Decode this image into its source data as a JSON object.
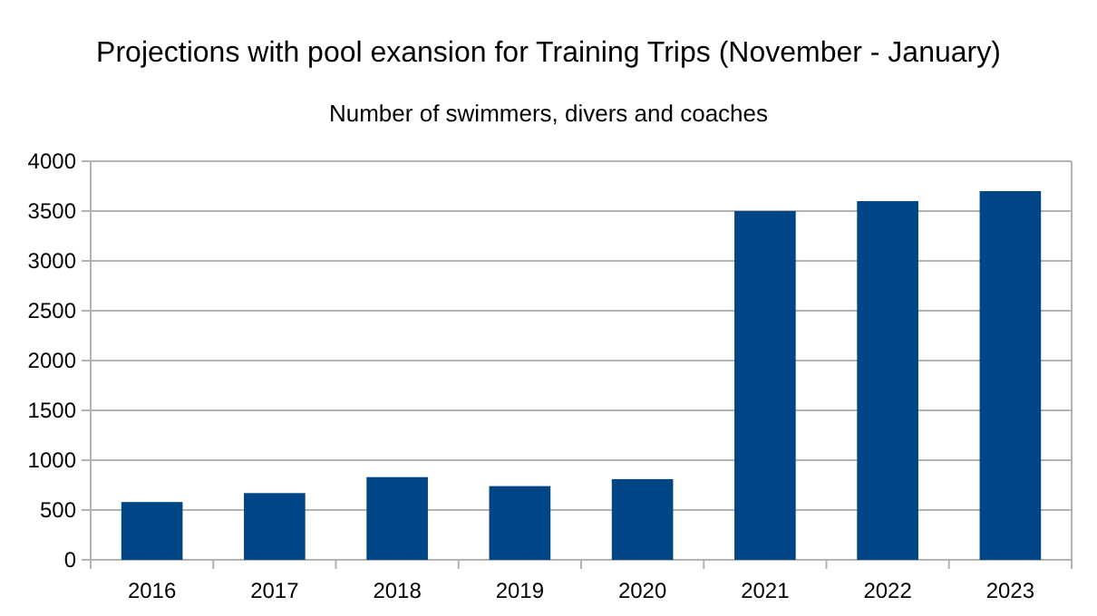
{
  "chart_data": {
    "type": "bar",
    "title": "Projections with pool exansion for Training Trips (November - January)",
    "subtitle": "Number of swimmers, divers and coaches",
    "categories": [
      "2016",
      "2017",
      "2018",
      "2019",
      "2020",
      "2021",
      "2022",
      "2023"
    ],
    "values": [
      580,
      670,
      830,
      740,
      810,
      3500,
      3600,
      3700
    ],
    "color": "#004586",
    "ylim": [
      0,
      4000
    ],
    "yticks": [
      0,
      500,
      1000,
      1500,
      2000,
      2500,
      3000,
      3500,
      4000
    ],
    "grid": "y"
  }
}
